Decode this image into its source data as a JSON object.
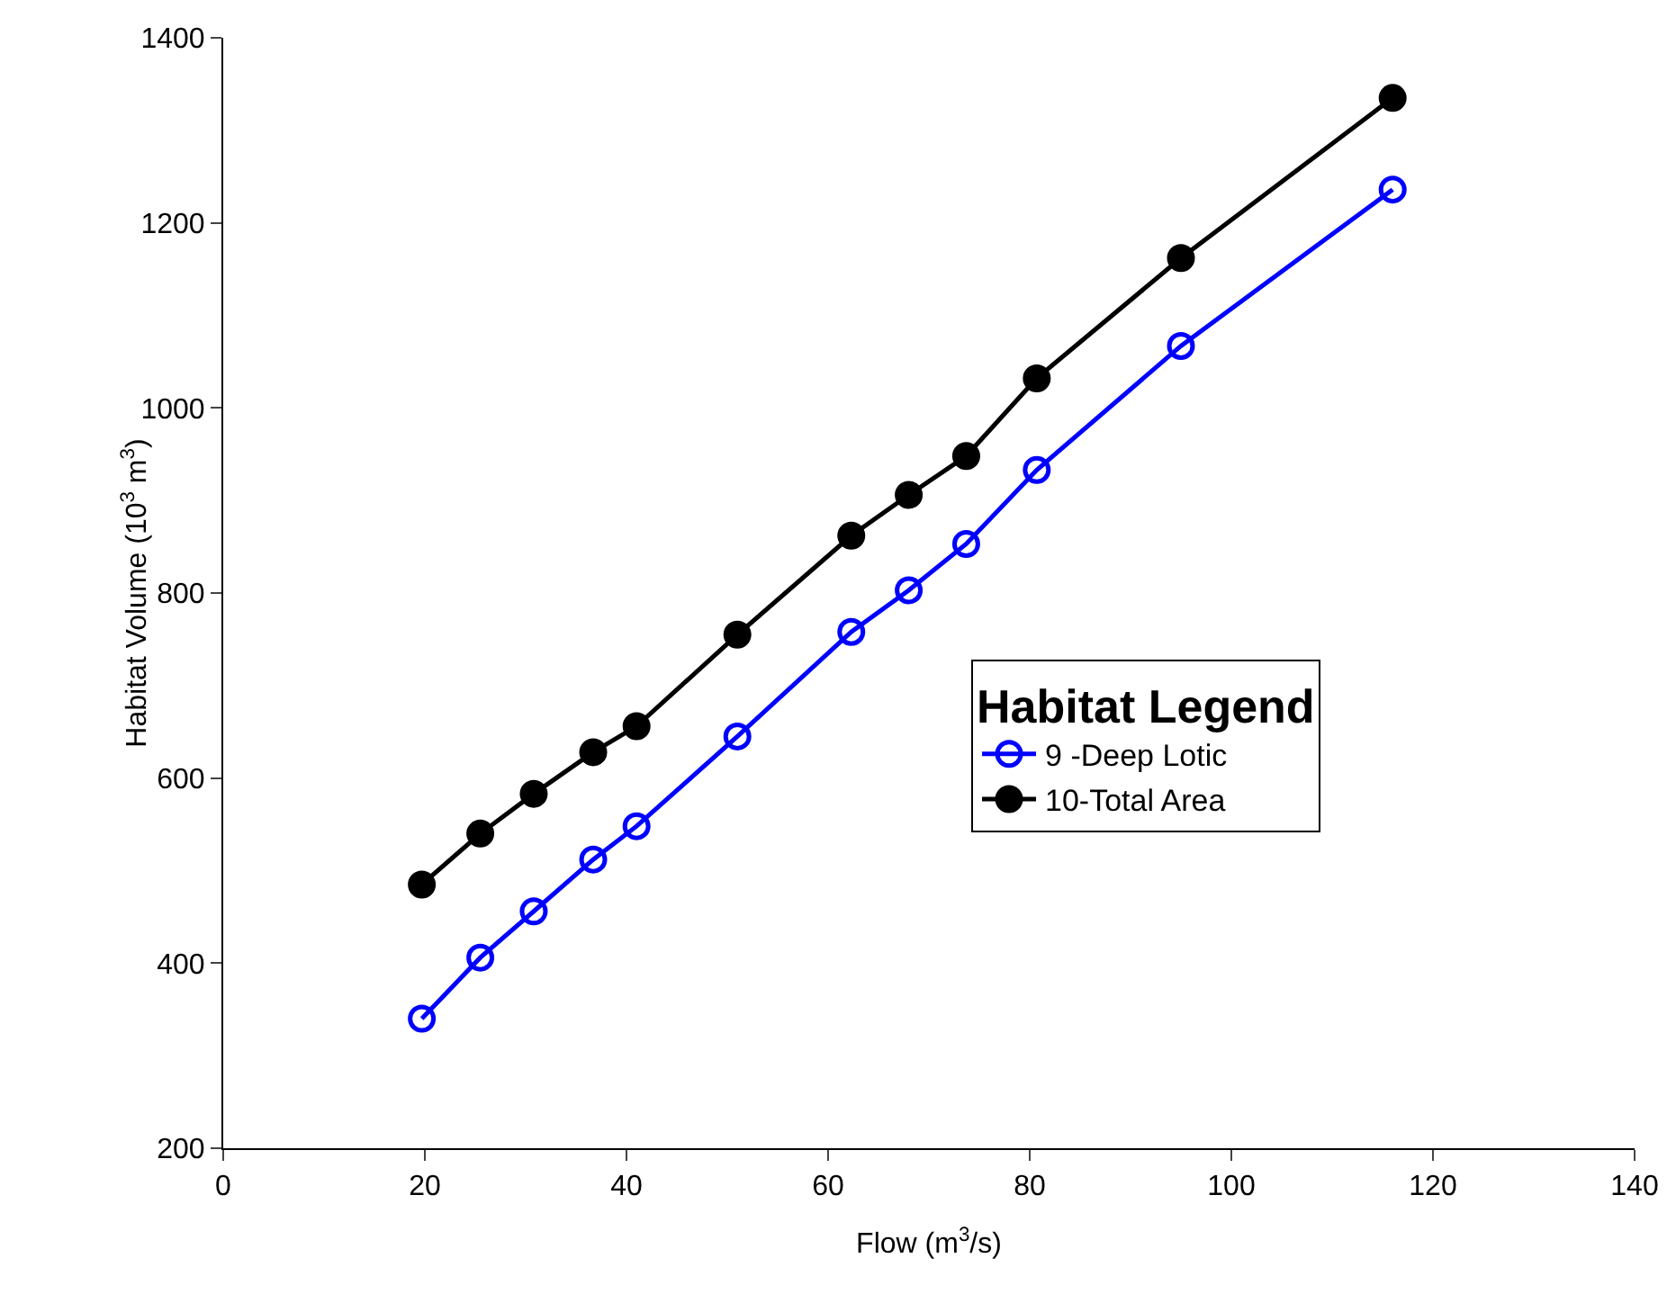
{
  "chart_data": {
    "type": "line",
    "xlabel": "Flow (m$^{3}$/s)",
    "ylabel": "Habitat Volume (10$^{3}$ m$^{3}$)",
    "legend_title": "Habitat Legend",
    "x": [
      19.7,
      25.5,
      30.8,
      36.7,
      41,
      51,
      62.3,
      68,
      73.7,
      80.7,
      95,
      116
    ],
    "series": [
      {
        "name": "9 -Deep Lotic",
        "color": "#0000ff",
        "marker": "circle-open",
        "values": [
          340,
          406,
          456,
          512,
          548,
          645,
          758,
          803,
          853,
          933,
          1067,
          1236
        ]
      },
      {
        "name": "10-Total Area",
        "color": "#000000",
        "marker": "circle",
        "values": [
          485,
          540,
          583,
          628,
          656,
          755,
          862,
          906,
          948,
          1032,
          1162,
          1335
        ]
      }
    ],
    "xlim": [
      0,
      140
    ],
    "xticks": [
      0,
      20,
      40,
      60,
      80,
      100,
      120,
      140
    ],
    "ylim": [
      200,
      1400
    ],
    "yticks": [
      200,
      400,
      600,
      800,
      1000,
      1200,
      1400
    ],
    "grid": false,
    "legend": "right",
    "line_style": "solid"
  }
}
